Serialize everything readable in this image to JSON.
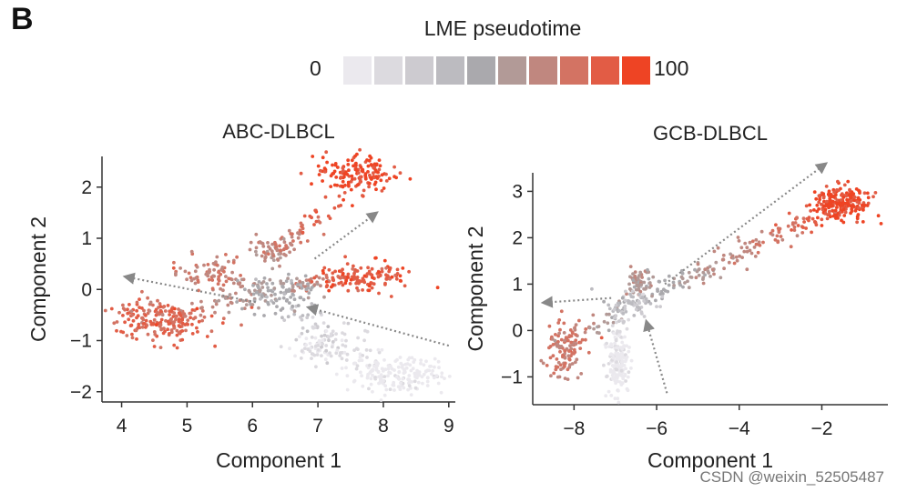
{
  "panel_label": "B",
  "legend": {
    "title": "LME pseudotime",
    "min_label": "0",
    "max_label": "100",
    "colors": [
      "#ebe9ee",
      "#dcdadf",
      "#cdcbd0",
      "#bcbbc0",
      "#aaa9ad",
      "#b29a97",
      "#c0877f",
      "#d37363",
      "#e25c45",
      "#ee4424"
    ]
  },
  "watermark": "CSDN @weixin_52505487",
  "chart_data": [
    {
      "type": "scatter",
      "title": "ABC-DLBCL",
      "xlabel": "Component 1",
      "ylabel": "Component 2",
      "xlim": [
        3.7,
        9.1
      ],
      "ylim": [
        -2.2,
        2.6
      ],
      "xticks": [
        4,
        5,
        6,
        7,
        8,
        9
      ],
      "yticks": [
        -2,
        -1,
        0,
        1,
        2
      ],
      "xtick_labels": [
        "4",
        "5",
        "6",
        "7",
        "8",
        "9"
      ],
      "ytick_labels": [
        "−2",
        "−1",
        "0",
        "1",
        "2"
      ],
      "clusters": [
        {
          "name": "upper-right",
          "cx": 7.6,
          "cy": 2.25,
          "sx": 0.28,
          "sy": 0.17,
          "n": 150,
          "t": 92
        },
        {
          "name": "right-middle",
          "cx": 7.75,
          "cy": 0.25,
          "sx": 0.33,
          "sy": 0.13,
          "n": 130,
          "t": 86
        },
        {
          "name": "left-low",
          "cx": 4.6,
          "cy": -0.6,
          "sx": 0.38,
          "sy": 0.2,
          "n": 190,
          "t": 80
        },
        {
          "name": "mid-left",
          "cx": 5.35,
          "cy": 0.35,
          "sx": 0.22,
          "sy": 0.17,
          "n": 70,
          "t": 70
        },
        {
          "name": "center-top",
          "cx": 6.3,
          "cy": 0.8,
          "sx": 0.16,
          "sy": 0.13,
          "n": 45,
          "t": 65
        },
        {
          "name": "center",
          "cx": 6.4,
          "cy": -0.1,
          "sx": 0.3,
          "sy": 0.2,
          "n": 90,
          "t": 45
        },
        {
          "name": "grey-mid",
          "cx": 7.0,
          "cy": -1.1,
          "sx": 0.2,
          "sy": 0.17,
          "n": 70,
          "t": 12
        },
        {
          "name": "grey-right",
          "cx": 8.2,
          "cy": -1.65,
          "sx": 0.4,
          "sy": 0.17,
          "n": 170,
          "t": 3
        }
      ],
      "paths": [
        {
          "x0": 6.3,
          "y0": 0.0,
          "x1": 4.6,
          "y1": -0.6,
          "n": 60,
          "t0": 50,
          "t1": 80,
          "spread": 0.1
        },
        {
          "x0": 6.3,
          "y0": 0.5,
          "x1": 7.3,
          "y1": 1.8,
          "n": 60,
          "t0": 60,
          "t1": 90,
          "spread": 0.12
        },
        {
          "x0": 6.5,
          "y0": 0.1,
          "x1": 7.5,
          "y1": 0.2,
          "n": 40,
          "t0": 55,
          "t1": 85,
          "spread": 0.08
        },
        {
          "x0": 6.5,
          "y0": -0.4,
          "x1": 8.0,
          "y1": -1.6,
          "n": 70,
          "t0": 30,
          "t1": 5,
          "spread": 0.15
        },
        {
          "x0": 5.5,
          "y0": 0.2,
          "x1": 6.3,
          "y1": 0.0,
          "n": 25,
          "t0": 70,
          "t1": 50,
          "spread": 0.1
        }
      ],
      "arrows": [
        {
          "x0": 6.05,
          "y0": -0.25,
          "x1": 4.05,
          "y1": 0.25
        },
        {
          "x0": 6.95,
          "y0": 0.6,
          "x1": 7.9,
          "y1": 1.5
        },
        {
          "x0": 9.0,
          "y0": -1.1,
          "x1": 6.85,
          "y1": -0.35
        }
      ]
    },
    {
      "type": "scatter",
      "title": "GCB-DLBCL",
      "xlabel": "Component 1",
      "ylabel": "Component 2",
      "xlim": [
        -9.0,
        -0.4
      ],
      "ylim": [
        -1.6,
        3.4
      ],
      "xticks": [
        -8,
        -6,
        -4,
        -2
      ],
      "yticks": [
        -1,
        0,
        1,
        2,
        3
      ],
      "xtick_labels": [
        "−8",
        "−6",
        "−4",
        "−2"
      ],
      "ytick_labels": [
        "−1",
        "0",
        "1",
        "2",
        "3"
      ],
      "clusters": [
        {
          "name": "top-right",
          "cx": -1.5,
          "cy": 2.75,
          "sx": 0.38,
          "sy": 0.2,
          "n": 200,
          "t": 92
        },
        {
          "name": "left-cluster",
          "cx": -8.2,
          "cy": -0.4,
          "sx": 0.22,
          "sy": 0.3,
          "n": 110,
          "t": 72
        },
        {
          "name": "top-blob",
          "cx": -6.4,
          "cy": 1.05,
          "sx": 0.16,
          "sy": 0.16,
          "n": 60,
          "t": 58
        },
        {
          "name": "center-bulge",
          "cx": -6.6,
          "cy": 0.55,
          "sx": 0.3,
          "sy": 0.14,
          "n": 60,
          "t": 30
        },
        {
          "name": "bottom-stem",
          "cx": -6.95,
          "cy": -0.75,
          "sx": 0.13,
          "sy": 0.35,
          "n": 130,
          "t": 4
        }
      ],
      "paths": [
        {
          "x0": -6.5,
          "y0": 0.6,
          "x1": -1.6,
          "y1": 2.7,
          "n": 170,
          "t0": 40,
          "t1": 90,
          "spread": 0.12
        },
        {
          "x0": -6.8,
          "y0": 0.5,
          "x1": -8.1,
          "y1": -0.2,
          "n": 40,
          "t0": 45,
          "t1": 70,
          "spread": 0.12
        },
        {
          "x0": -6.9,
          "y0": 0.3,
          "x1": -6.95,
          "y1": -0.9,
          "n": 40,
          "t0": 20,
          "t1": 5,
          "spread": 0.1
        }
      ],
      "arrows": [
        {
          "x0": -5.8,
          "y0": 1.0,
          "x1": -1.9,
          "y1": 3.6
        },
        {
          "x0": -7.1,
          "y0": 0.7,
          "x1": -8.75,
          "y1": 0.6
        },
        {
          "x0": -5.75,
          "y0": -1.35,
          "x1": -6.25,
          "y1": 0.2
        }
      ]
    }
  ]
}
